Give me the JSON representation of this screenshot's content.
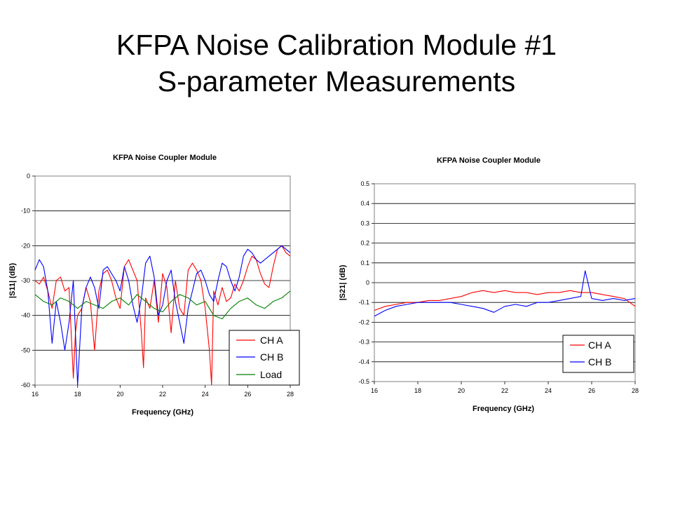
{
  "slide": {
    "title_line1": "KFPA Noise Calibration Module #1",
    "title_line2": "S-parameter Measurements"
  },
  "chart_data": [
    {
      "type": "line",
      "title": "KFPA Noise Coupler Module",
      "xlabel": "Frequency (GHz)",
      "ylabel": "|S11| (dB)",
      "xlim": [
        16,
        28
      ],
      "ylim": [
        -60,
        0
      ],
      "xticks": [
        "16",
        "18",
        "20",
        "22",
        "24",
        "26",
        "28"
      ],
      "yticks": [
        "0",
        "-10",
        "-20",
        "-30",
        "-40",
        "-50",
        "-60"
      ],
      "grid": "horizontal",
      "legend_position": "bottom-right",
      "series": [
        {
          "name": "CH A",
          "color": "#ff0000",
          "x": [
            16,
            16.2,
            16.4,
            16.6,
            16.8,
            17.0,
            17.2,
            17.4,
            17.6,
            17.8,
            17.9,
            18.0,
            18.2,
            18.4,
            18.6,
            18.8,
            19.0,
            19.2,
            19.4,
            19.6,
            19.8,
            20.0,
            20.2,
            20.4,
            20.6,
            20.8,
            21.0,
            21.1,
            21.2,
            21.4,
            21.6,
            21.8,
            22.0,
            22.2,
            22.4,
            22.6,
            22.8,
            23.0,
            23.2,
            23.4,
            23.6,
            23.8,
            24.0,
            24.2,
            24.3,
            24.4,
            24.6,
            24.8,
            25.0,
            25.2,
            25.4,
            25.6,
            25.8,
            26.0,
            26.2,
            26.4,
            26.6,
            26.8,
            27.0,
            27.2,
            27.4,
            27.6,
            27.8,
            28.0
          ],
          "y": [
            -30,
            -31,
            -29,
            -33,
            -38,
            -30,
            -29,
            -33,
            -32,
            -58,
            -45,
            -40,
            -38,
            -32,
            -36,
            -50,
            -33,
            -28,
            -27,
            -30,
            -35,
            -38,
            -26,
            -24,
            -27,
            -30,
            -45,
            -55,
            -35,
            -38,
            -30,
            -42,
            -28,
            -32,
            -45,
            -30,
            -38,
            -40,
            -27,
            -25,
            -27,
            -30,
            -38,
            -50,
            -60,
            -33,
            -37,
            -32,
            -36,
            -35,
            -31,
            -33,
            -30,
            -26,
            -23,
            -24,
            -28,
            -31,
            -32,
            -26,
            -21,
            -20,
            -22,
            -23
          ]
        },
        {
          "name": "CH B",
          "color": "#0000ff",
          "x": [
            16,
            16.2,
            16.4,
            16.6,
            16.8,
            17.0,
            17.2,
            17.4,
            17.6,
            17.8,
            17.9,
            18.0,
            18.2,
            18.4,
            18.6,
            18.8,
            19.0,
            19.2,
            19.4,
            19.6,
            19.8,
            20.0,
            20.2,
            20.4,
            20.6,
            20.8,
            21.0,
            21.2,
            21.4,
            21.6,
            21.8,
            22.0,
            22.2,
            22.4,
            22.6,
            22.8,
            23.0,
            23.2,
            23.4,
            23.6,
            23.8,
            24.0,
            24.2,
            24.4,
            24.6,
            24.8,
            25.0,
            25.2,
            25.4,
            25.6,
            25.8,
            26.0,
            26.2,
            26.4,
            26.6,
            26.8,
            27.0,
            27.2,
            27.4,
            27.6,
            27.8,
            28.0
          ],
          "y": [
            -27,
            -24,
            -26,
            -33,
            -48,
            -36,
            -42,
            -50,
            -42,
            -30,
            -45,
            -60,
            -38,
            -32,
            -29,
            -32,
            -38,
            -27,
            -26,
            -28,
            -30,
            -33,
            -26,
            -30,
            -37,
            -42,
            -35,
            -25,
            -23,
            -29,
            -40,
            -37,
            -30,
            -27,
            -36,
            -42,
            -48,
            -38,
            -33,
            -28,
            -27,
            -30,
            -34,
            -36,
            -30,
            -25,
            -26,
            -30,
            -33,
            -29,
            -23,
            -21,
            -22,
            -24,
            -25,
            -24,
            -23,
            -22,
            -21,
            -20,
            -21,
            -22
          ]
        },
        {
          "name": "Load",
          "color": "#008000",
          "x": [
            16,
            16.4,
            16.8,
            17.2,
            17.6,
            18.0,
            18.4,
            18.8,
            19.2,
            19.6,
            20.0,
            20.4,
            20.8,
            21.2,
            21.6,
            22.0,
            22.4,
            22.8,
            23.2,
            23.6,
            24.0,
            24.4,
            24.8,
            25.2,
            25.6,
            26.0,
            26.4,
            26.8,
            27.2,
            27.6,
            28.0
          ],
          "y": [
            -34,
            -36,
            -37,
            -35,
            -36,
            -38,
            -36,
            -37,
            -38,
            -36,
            -35,
            -37,
            -34,
            -36,
            -38,
            -39,
            -36,
            -34,
            -35,
            -37,
            -36,
            -40,
            -41,
            -38,
            -36,
            -35,
            -37,
            -38,
            -36,
            -35,
            -33
          ]
        }
      ]
    },
    {
      "type": "line",
      "title": "KFPA Noise Coupler Module",
      "xlabel": "Frequency (GHz)",
      "ylabel": "|S21| (dB)",
      "xlim": [
        16,
        28
      ],
      "ylim": [
        -0.5,
        0.5
      ],
      "xticks": [
        "16",
        "18",
        "20",
        "22",
        "24",
        "26",
        "28"
      ],
      "yticks": [
        "0.5",
        "0.4",
        "0.3",
        "0.2",
        "0.1",
        "0",
        "-0.1",
        "-0.2",
        "-0.3",
        "-0.4",
        "-0.5"
      ],
      "grid": "horizontal",
      "legend_position": "bottom-right",
      "series": [
        {
          "name": "CH A",
          "color": "#ff0000",
          "x": [
            16,
            16.5,
            17,
            17.5,
            18,
            18.5,
            19,
            19.5,
            20,
            20.5,
            21,
            21.5,
            22,
            22.5,
            23,
            23.5,
            24,
            24.5,
            25,
            25.5,
            26,
            26.5,
            27,
            27.5,
            28
          ],
          "y": [
            -0.14,
            -0.12,
            -0.11,
            -0.1,
            -0.1,
            -0.09,
            -0.09,
            -0.08,
            -0.07,
            -0.05,
            -0.04,
            -0.05,
            -0.04,
            -0.05,
            -0.05,
            -0.06,
            -0.05,
            -0.05,
            -0.04,
            -0.05,
            -0.05,
            -0.06,
            -0.07,
            -0.08,
            -0.12
          ]
        },
        {
          "name": "CH B",
          "color": "#0000ff",
          "x": [
            16,
            16.5,
            17,
            17.5,
            18,
            18.5,
            19,
            19.5,
            20,
            20.5,
            21,
            21.5,
            22,
            22.5,
            23,
            23.5,
            24,
            24.5,
            25,
            25.5,
            25.7,
            26,
            26.5,
            27,
            27.5,
            28
          ],
          "y": [
            -0.17,
            -0.14,
            -0.12,
            -0.11,
            -0.1,
            -0.1,
            -0.1,
            -0.1,
            -0.11,
            -0.12,
            -0.13,
            -0.15,
            -0.12,
            -0.11,
            -0.12,
            -0.1,
            -0.1,
            -0.09,
            -0.08,
            -0.07,
            0.06,
            -0.08,
            -0.09,
            -0.08,
            -0.09,
            -0.08
          ]
        }
      ]
    }
  ]
}
